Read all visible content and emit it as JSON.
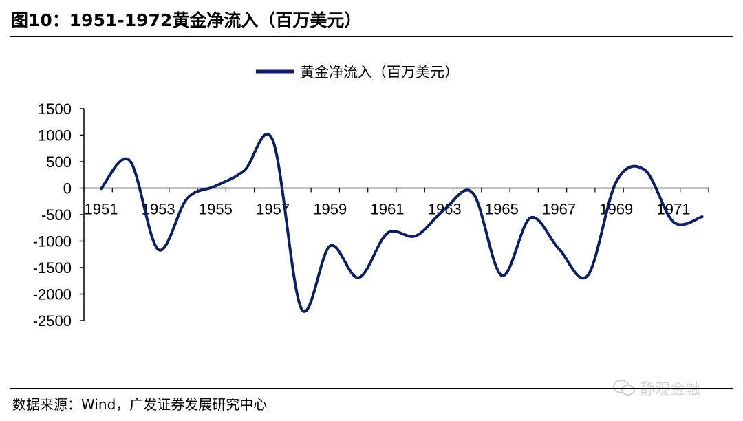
{
  "figure": {
    "title": "图10：1951-1972黄金净流入（百万美元）",
    "source": "数据来源：Wind，广发证券发展研究中心",
    "watermark": "静观金融"
  },
  "chart_data": {
    "type": "line",
    "title": "",
    "xlabel": "",
    "ylabel": "",
    "x": [
      1951,
      1952,
      1953,
      1954,
      1955,
      1956,
      1957,
      1958,
      1959,
      1960,
      1961,
      1962,
      1963,
      1964,
      1965,
      1966,
      1967,
      1968,
      1969,
      1970,
      1971,
      1972
    ],
    "x_tick_labels": [
      "1951",
      "1953",
      "1955",
      "1957",
      "1959",
      "1961",
      "1963",
      "1965",
      "1967",
      "1969",
      "1971"
    ],
    "series": [
      {
        "name": "黄金净流入（百万美元）",
        "color": "#0d1f5c",
        "values": [
          -10,
          520,
          -1160,
          -200,
          40,
          330,
          900,
          -2280,
          -1090,
          -1690,
          -850,
          -900,
          -400,
          -100,
          -1650,
          -560,
          -1150,
          -1650,
          120,
          340,
          -640,
          -540
        ]
      }
    ],
    "ylim": [
      -2500,
      1500
    ],
    "y_ticks": [
      1500,
      1000,
      500,
      0,
      -500,
      -1000,
      -1500,
      -2000,
      -2500
    ],
    "legend_position": "top-center",
    "grid": false
  }
}
